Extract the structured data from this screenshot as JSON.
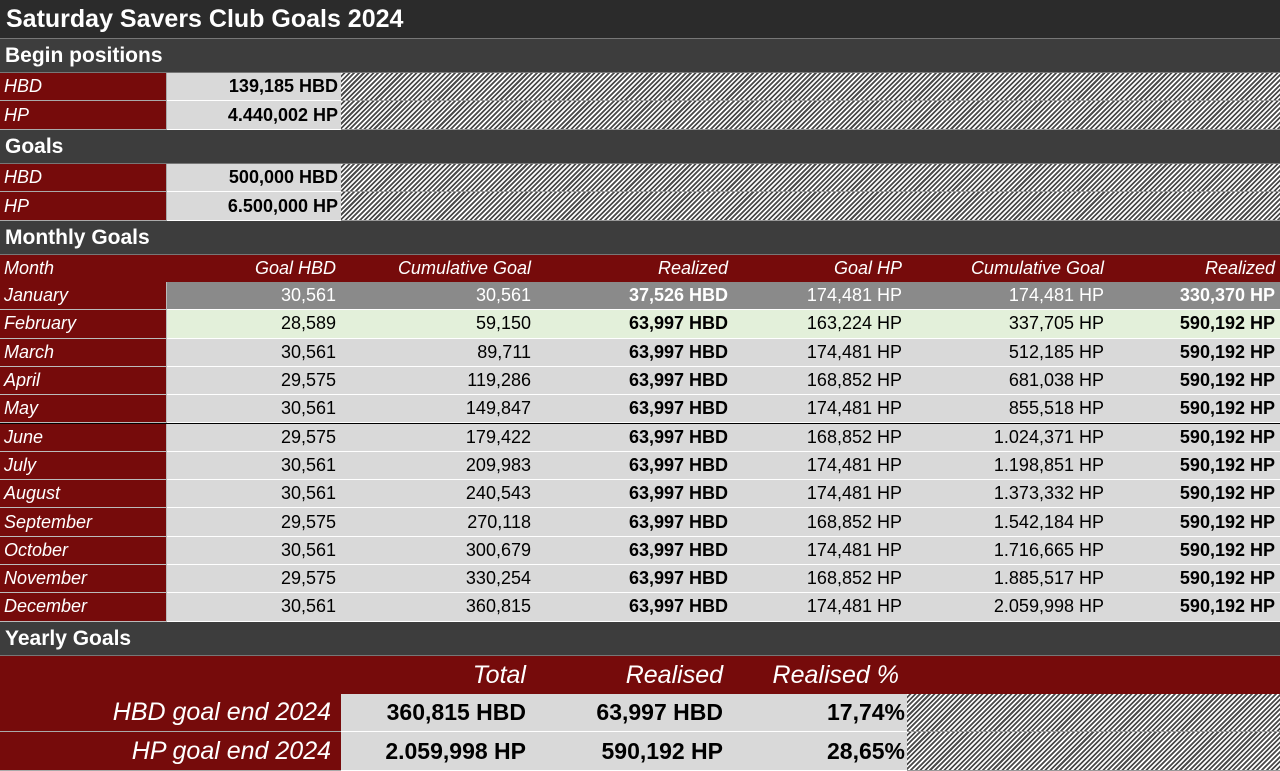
{
  "title": "Saturday Savers Club Goals 2024",
  "begin_positions": {
    "heading": "Begin positions",
    "rows": [
      {
        "label": "HBD",
        "value": "139,185 HBD"
      },
      {
        "label": "HP",
        "value": "4.440,002 HP"
      }
    ]
  },
  "goals": {
    "heading": "Goals",
    "rows": [
      {
        "label": "HBD",
        "value": "500,000 HBD"
      },
      {
        "label": "HP",
        "value": "6.500,000 HP"
      }
    ]
  },
  "monthly": {
    "heading": "Monthly Goals",
    "headers": [
      "Month",
      "Goal HBD",
      "Cumulative Goal",
      "Realized",
      "Goal HP",
      "Cumulative Goal",
      "Realized"
    ],
    "rows": [
      {
        "month": "January",
        "goal_hbd": "30,561",
        "cum_hbd": "30,561",
        "real_hbd": "37,526 HBD",
        "goal_hp": "174,481 HP",
        "cum_hp": "174,481 HP",
        "real_hp": "330,370 HP"
      },
      {
        "month": "February",
        "goal_hbd": "28,589",
        "cum_hbd": "59,150",
        "real_hbd": "63,997 HBD",
        "goal_hp": "163,224 HP",
        "cum_hp": "337,705 HP",
        "real_hp": "590,192 HP"
      },
      {
        "month": "March",
        "goal_hbd": "30,561",
        "cum_hbd": "89,711",
        "real_hbd": "63,997 HBD",
        "goal_hp": "174,481 HP",
        "cum_hp": "512,185 HP",
        "real_hp": "590,192 HP"
      },
      {
        "month": "April",
        "goal_hbd": "29,575",
        "cum_hbd": "119,286",
        "real_hbd": "63,997 HBD",
        "goal_hp": "168,852 HP",
        "cum_hp": "681,038 HP",
        "real_hp": "590,192 HP"
      },
      {
        "month": "May",
        "goal_hbd": "30,561",
        "cum_hbd": "149,847",
        "real_hbd": "63,997 HBD",
        "goal_hp": "174,481 HP",
        "cum_hp": "855,518 HP",
        "real_hp": "590,192 HP"
      },
      {
        "month": "June",
        "goal_hbd": "29,575",
        "cum_hbd": "179,422",
        "real_hbd": "63,997 HBD",
        "goal_hp": "168,852 HP",
        "cum_hp": "1.024,371 HP",
        "real_hp": "590,192 HP"
      },
      {
        "month": "July",
        "goal_hbd": "30,561",
        "cum_hbd": "209,983",
        "real_hbd": "63,997 HBD",
        "goal_hp": "174,481 HP",
        "cum_hp": "1.198,851 HP",
        "real_hp": "590,192 HP"
      },
      {
        "month": "August",
        "goal_hbd": "30,561",
        "cum_hbd": "240,543",
        "real_hbd": "63,997 HBD",
        "goal_hp": "174,481 HP",
        "cum_hp": "1.373,332 HP",
        "real_hp": "590,192 HP"
      },
      {
        "month": "September",
        "goal_hbd": "29,575",
        "cum_hbd": "270,118",
        "real_hbd": "63,997 HBD",
        "goal_hp": "168,852 HP",
        "cum_hp": "1.542,184 HP",
        "real_hp": "590,192 HP"
      },
      {
        "month": "October",
        "goal_hbd": "30,561",
        "cum_hbd": "300,679",
        "real_hbd": "63,997 HBD",
        "goal_hp": "174,481 HP",
        "cum_hp": "1.716,665 HP",
        "real_hp": "590,192 HP"
      },
      {
        "month": "November",
        "goal_hbd": "29,575",
        "cum_hbd": "330,254",
        "real_hbd": "63,997 HBD",
        "goal_hp": "168,852 HP",
        "cum_hp": "1.885,517 HP",
        "real_hp": "590,192 HP"
      },
      {
        "month": "December",
        "goal_hbd": "30,561",
        "cum_hbd": "360,815",
        "real_hbd": "63,997 HBD",
        "goal_hp": "174,481 HP",
        "cum_hp": "2.059,998 HP",
        "real_hp": "590,192 HP"
      }
    ]
  },
  "yearly": {
    "heading": "Yearly Goals",
    "headers": [
      "Total",
      "Realised",
      "Realised %"
    ],
    "rows": [
      {
        "label": "HBD goal end 2024",
        "total": "360,815 HBD",
        "realised": "63,997 HBD",
        "pct": "17,74%"
      },
      {
        "label": "HP goal end 2024",
        "total": "2.059,998 HP",
        "realised": "590,192 HP",
        "pct": "28,65%"
      }
    ]
  },
  "colors": {
    "label_red": "#760b0b",
    "section_gray": "#3d3d3d",
    "cell_gray": "#d9d9d9",
    "highlight_green": "#e3f0da",
    "current_row_gray": "#8a8a8a"
  }
}
